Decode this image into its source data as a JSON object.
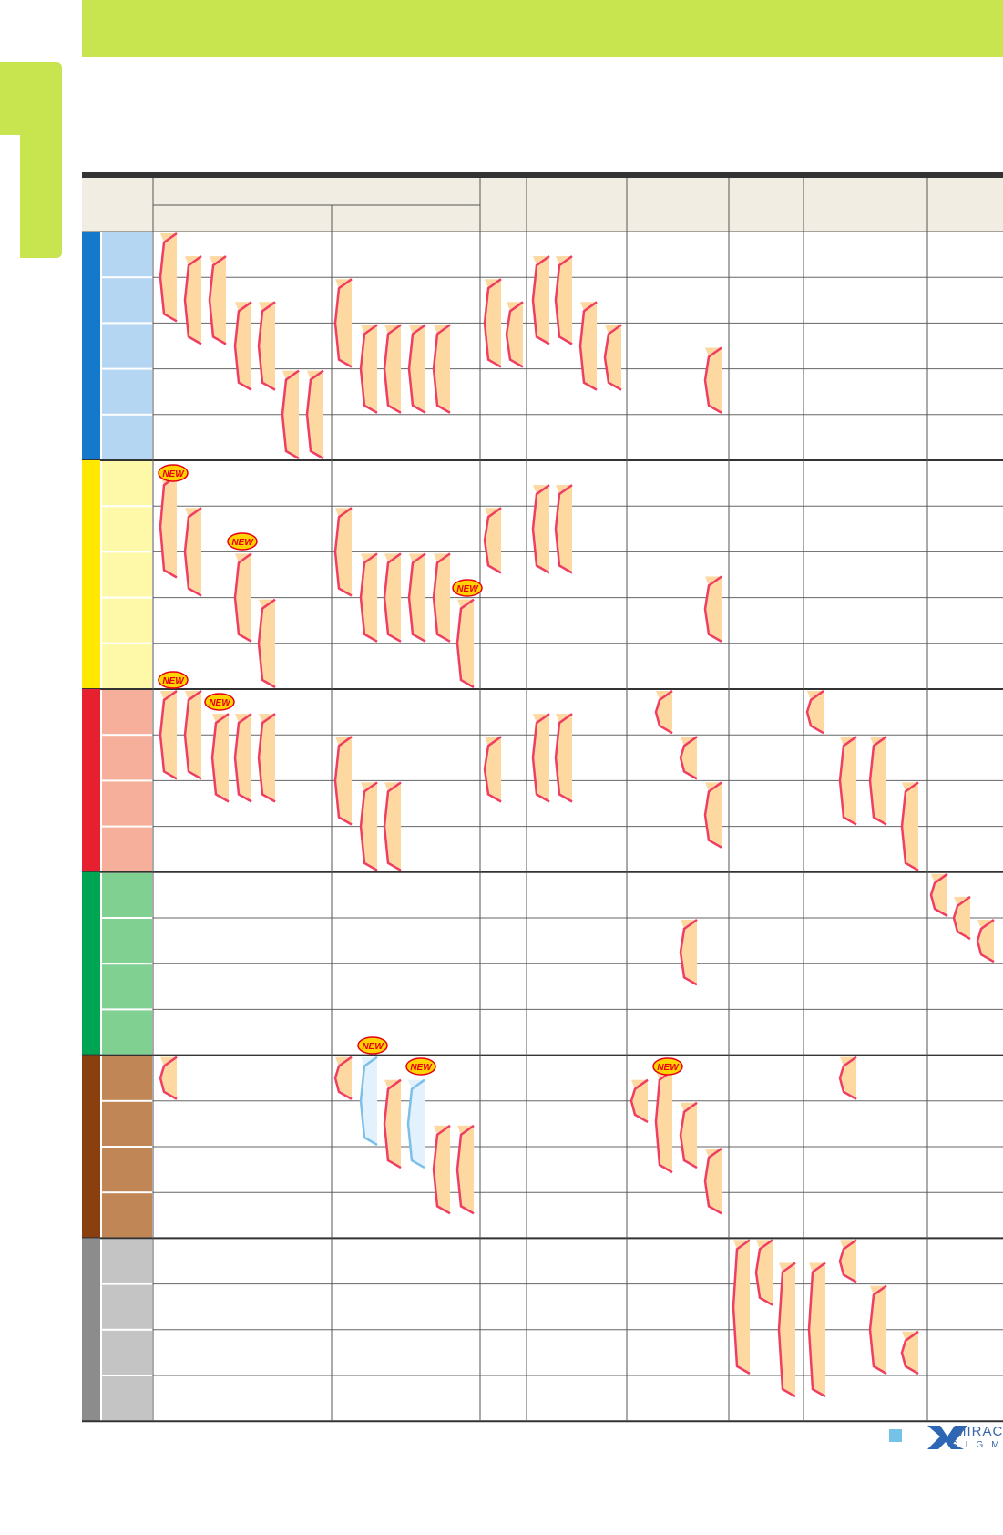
{
  "badge_text": "NEW",
  "brand": {
    "name_top": "MIRACLE",
    "name_bottom": "SIGMA"
  },
  "colors": {
    "header_band": "#c8e44e",
    "bar_fill": "#fdd8a0",
    "bar_edge": "#ef3e63",
    "bar_fill_alt": "#e3f1fc",
    "bar_edge_alt": "#7cc0ea",
    "badge_fill": "#ffd200",
    "badge_edge": "#e60012",
    "badge_text": "#e60012",
    "header_bg": "#f1ede3",
    "groups": [
      {
        "strip": "#1479cb",
        "cell": "#b4d6f2"
      },
      {
        "strip": "#ffe800",
        "cell": "#fdf9a8"
      },
      {
        "strip": "#e6202e",
        "cell": "#f5af9a"
      },
      {
        "strip": "#00a553",
        "cell": "#80d092"
      },
      {
        "strip": "#8a3f10",
        "cell": "#c08656"
      },
      {
        "strip": "#8c8c8c",
        "cell": "#c4c4c4"
      }
    ]
  },
  "groups": [
    {
      "rows": 5
    },
    {
      "rows": 5
    },
    {
      "rows": 4
    },
    {
      "rows": 4
    },
    {
      "rows": 4
    },
    {
      "rows": 4
    }
  ]
}
